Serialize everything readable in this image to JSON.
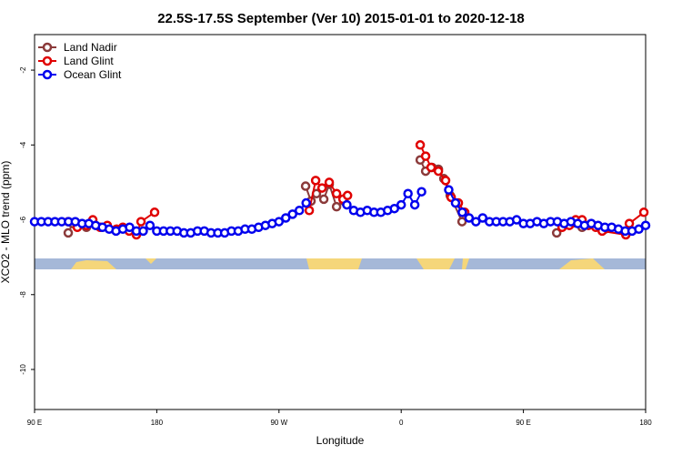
{
  "chart_data": {
    "type": "line",
    "title": "22.5S-17.5S September (Ver 10)   2015-01-01 to 2020-12-18",
    "x_label": "Longitude",
    "y_label": "XCO2 - MLO trend (ppm)",
    "xlim": [
      90,
      540
    ],
    "ylim": [
      -11.07,
      -1.05
    ],
    "xticks": [
      {
        "value": 90,
        "label": "90 E"
      },
      {
        "value": 180,
        "label": "180"
      },
      {
        "value": 270,
        "label": "90 W"
      },
      {
        "value": 360,
        "label": "0"
      },
      {
        "value": 450,
        "label": "90 E"
      },
      {
        "value": 540,
        "label": "180"
      }
    ],
    "yticks": [
      -10,
      -8,
      -6,
      -4,
      -2
    ],
    "legend": "top-left",
    "series": [
      {
        "name": "Land Nadir",
        "color": "#8b3a3a",
        "x": [
          114.8,
          118.1,
          128.2,
          200,
          289.6,
          293.6,
          297.6,
          303,
          307,
          312.4,
          317.7,
          350,
          374,
          378,
          382.7,
          387.4,
          391.4,
          396.1,
          404.8,
          440,
          474.5,
          478.5,
          493.2,
          510
        ],
        "values": [
          -6.35,
          -6.1,
          -6.2,
          null,
          -5.1,
          -5.5,
          -5.3,
          -5.45,
          -5.05,
          -5.65,
          -5.5,
          null,
          -4.4,
          -4.7,
          -4.6,
          -4.65,
          -4.9,
          -5.35,
          -6.05,
          null,
          -6.35,
          -6.15,
          -6.2,
          -6.25
        ]
      },
      {
        "name": "Land Glint",
        "color": "#e00000",
        "x": [
          114.8,
          121.5,
          128.2,
          132.9,
          138.3,
          143.6,
          150.3,
          155,
          159.7,
          165,
          168.4,
          178.4,
          230,
          292.3,
          297,
          301.7,
          307,
          312.4,
          317.1,
          320.5,
          350,
          374,
          378,
          382,
          387.4,
          392.7,
          396.8,
          402.1,
          406.8,
          440,
          478.5,
          483.8,
          488.5,
          493.2,
          497.9,
          503.3,
          508,
          525.4,
          528,
          538.7
        ],
        "values": [
          -6.05,
          -6.2,
          -6.15,
          -6.0,
          -6.2,
          -6.15,
          -6.25,
          -6.2,
          -6.3,
          -6.4,
          -6.05,
          -5.8,
          null,
          -5.75,
          -4.95,
          -5.15,
          -5.0,
          -5.3,
          -5.45,
          -5.35,
          null,
          -4.0,
          -4.3,
          -4.6,
          -4.7,
          -4.95,
          -5.4,
          -5.55,
          -5.8,
          null,
          -6.2,
          -6.15,
          -6.0,
          -6.0,
          -6.15,
          -6.2,
          -6.3,
          -6.4,
          -6.1,
          -5.8
        ]
      },
      {
        "name": "Ocean Glint",
        "color": "#0000ee",
        "x": [
          90,
          95,
          100,
          105,
          110,
          115,
          120,
          125,
          130,
          135,
          140,
          145,
          150,
          155,
          160,
          165,
          170,
          175,
          180,
          185,
          190,
          195,
          200,
          205,
          210,
          215,
          220,
          225,
          230,
          235,
          240,
          245,
          250,
          255,
          260,
          265,
          270,
          275,
          280,
          285,
          290,
          305,
          320,
          325,
          330,
          335,
          340,
          345,
          350,
          355,
          360,
          365,
          370,
          375,
          385,
          395,
          400,
          405,
          410,
          415,
          420,
          425,
          430,
          435,
          440,
          445,
          450,
          455,
          460,
          465,
          470,
          475,
          480,
          485,
          490,
          495,
          500,
          505,
          510,
          515,
          520,
          525,
          530,
          535,
          540
        ],
        "values": [
          -6.05,
          -6.05,
          -6.05,
          -6.05,
          -6.05,
          -6.05,
          -6.05,
          -6.1,
          -6.1,
          -6.15,
          -6.2,
          -6.25,
          -6.3,
          -6.25,
          -6.2,
          -6.3,
          -6.3,
          -6.15,
          -6.3,
          -6.3,
          -6.3,
          -6.3,
          -6.35,
          -6.35,
          -6.3,
          -6.3,
          -6.35,
          -6.35,
          -6.35,
          -6.3,
          -6.3,
          -6.25,
          -6.25,
          -6.2,
          -6.15,
          -6.1,
          -6.05,
          -5.95,
          -5.85,
          -5.75,
          -5.55,
          null,
          -5.6,
          -5.75,
          -5.8,
          -5.75,
          -5.8,
          -5.8,
          -5.75,
          -5.7,
          -5.6,
          -5.3,
          -5.6,
          -5.25,
          null,
          -5.2,
          -5.55,
          -5.8,
          -5.95,
          -6.05,
          -5.95,
          -6.05,
          -6.05,
          -6.05,
          -6.05,
          -6.0,
          -6.1,
          -6.1,
          -6.05,
          -6.1,
          -6.05,
          -6.05,
          -6.1,
          -6.05,
          -6.1,
          -6.15,
          -6.1,
          -6.15,
          -6.2,
          -6.2,
          -6.25,
          -6.3,
          -6.3,
          -6.25,
          -6.15
        ]
      }
    ]
  }
}
